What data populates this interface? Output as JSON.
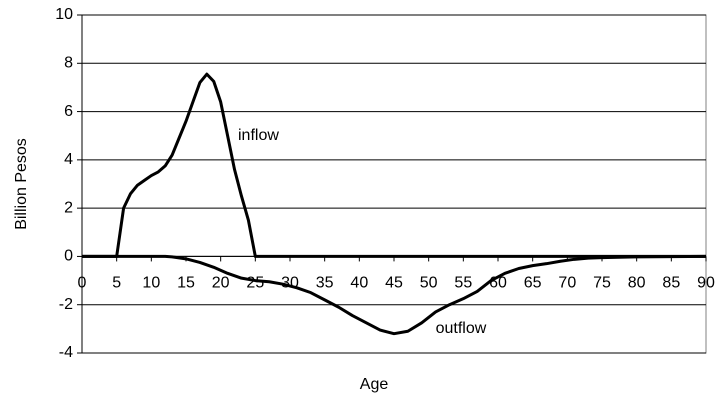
{
  "chart_data": {
    "type": "line",
    "xlabel": "Age",
    "ylabel": "Billion Pesos",
    "xlim": [
      0,
      90
    ],
    "xticks": [
      0,
      5,
      10,
      15,
      20,
      25,
      30,
      35,
      40,
      45,
      50,
      55,
      60,
      65,
      70,
      75,
      80,
      85,
      90
    ],
    "ylim": [
      -4,
      10
    ],
    "yticks": [
      -4,
      -2,
      0,
      2,
      4,
      6,
      8,
      10
    ],
    "grid": true,
    "series": [
      {
        "name": "inflow",
        "color": "#000000",
        "x": [
          0,
          5,
          6,
          7,
          8,
          9,
          10,
          11,
          12,
          13,
          14,
          15,
          16,
          17,
          18,
          19,
          20,
          21,
          22,
          23,
          24,
          25,
          90
        ],
        "values": [
          0,
          0,
          2.0,
          2.6,
          2.95,
          3.15,
          3.35,
          3.5,
          3.75,
          4.2,
          4.9,
          5.6,
          6.4,
          7.2,
          7.55,
          7.25,
          6.4,
          5.0,
          3.6,
          2.5,
          1.5,
          0,
          0
        ]
      },
      {
        "name": "outflow",
        "color": "#000000",
        "x": [
          0,
          12,
          13,
          15,
          17,
          19,
          21,
          23,
          25,
          27,
          29,
          31,
          33,
          35,
          37,
          39,
          41,
          43,
          45,
          47,
          49,
          51,
          53,
          55,
          57,
          59,
          61,
          63,
          65,
          67,
          69,
          71,
          73,
          75,
          80,
          85,
          90
        ],
        "values": [
          0,
          0,
          -0.02,
          -0.1,
          -0.25,
          -0.45,
          -0.7,
          -0.9,
          -1.0,
          -1.05,
          -1.15,
          -1.3,
          -1.5,
          -1.8,
          -2.1,
          -2.45,
          -2.75,
          -3.05,
          -3.2,
          -3.1,
          -2.75,
          -2.3,
          -2.0,
          -1.75,
          -1.45,
          -1.0,
          -0.7,
          -0.5,
          -0.38,
          -0.3,
          -0.2,
          -0.12,
          -0.07,
          -0.05,
          -0.02,
          -0.01,
          0
        ]
      }
    ]
  }
}
